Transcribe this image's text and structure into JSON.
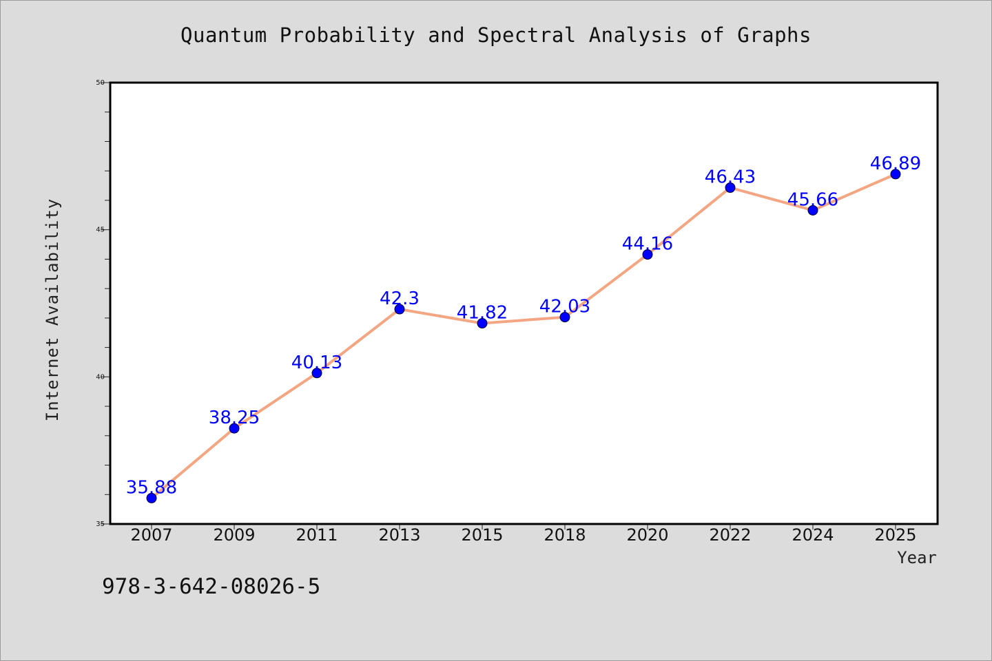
{
  "chart_data": {
    "type": "line",
    "title": "Quantum Probability and Spectral Analysis of Graphs",
    "xlabel": "Year",
    "ylabel": "Internet Availability",
    "categories": [
      "2007",
      "2009",
      "2011",
      "2013",
      "2015",
      "2018",
      "2020",
      "2022",
      "2024",
      "2025"
    ],
    "series": [
      {
        "values": [
          35.88,
          38.25,
          40.13,
          42.3,
          41.82,
          42.03,
          44.16,
          46.43,
          45.66,
          46.89
        ],
        "data_labels": [
          "35.88",
          "38.25",
          "40.13",
          "42.3",
          "41.82",
          "42.03",
          "44.16",
          "46.43",
          "45.66",
          "46.89"
        ]
      }
    ],
    "ylim": [
      35,
      50
    ],
    "yticks": [
      "35",
      "40",
      "45",
      "50"
    ],
    "grid": false,
    "colors": {
      "line": "#f4a582",
      "marker": "#0000ff",
      "data_label": "#0000ff",
      "background": "#dcdcdc",
      "plot_background": "#ffffff"
    }
  },
  "footer": {
    "isbn": "978-3-642-08026-5"
  }
}
